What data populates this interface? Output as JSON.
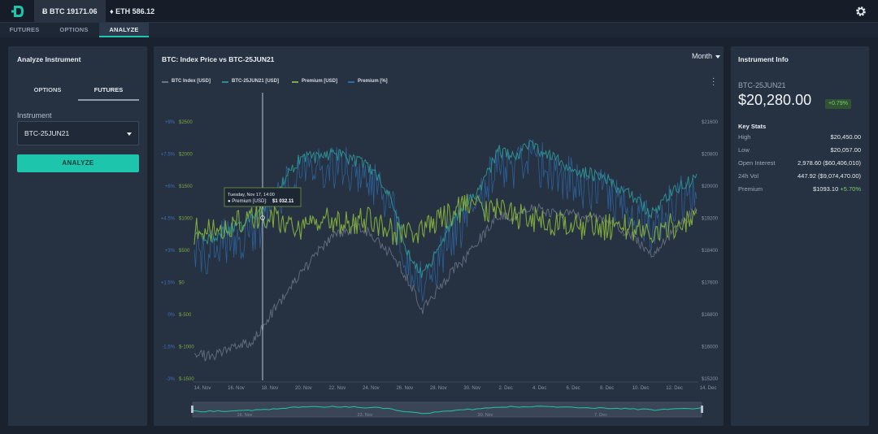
{
  "header": {
    "tickers": [
      {
        "symbol_icon": "bitcoin-icon",
        "label": "Ƀ BTC 19171.06"
      },
      {
        "symbol_icon": "ethereum-icon",
        "label": "♦ ETH 586.12"
      }
    ],
    "settings_icon": "gear-icon",
    "logo_icon": "deribit-logo-icon",
    "accent": "#1ec5ad"
  },
  "nav": {
    "tabs": [
      "FUTURES",
      "OPTIONS",
      "ANALYZE"
    ],
    "active": "ANALYZE"
  },
  "analyze_panel": {
    "title": "Analyze Instrument",
    "segments": [
      "OPTIONS",
      "FUTURES"
    ],
    "active_segment": "FUTURES",
    "instrument_label": "Instrument",
    "instrument_value": "BTC-25JUN21",
    "analyze_button": "ANALYZE"
  },
  "chart_panel": {
    "title": "BTC: Index Price vs BTC-25JUN21",
    "range_select": "Month",
    "menu_icon": "kebab-menu-icon",
    "tooltip": {
      "date": "Tuesday, Nov 17, 14:00",
      "series": "Premium [USD]:",
      "value": "$1 032.11"
    }
  },
  "chart_data": {
    "type": "line",
    "legend": [
      {
        "name": "BTC Index [USD]",
        "color": "#6b7686"
      },
      {
        "name": "BTC-25JUN21 [USD]",
        "color": "#2d8f8f"
      },
      {
        "name": "Premium [USD]",
        "color": "#7fa83e"
      },
      {
        "name": "Premium [%]",
        "color": "#2e6aa8"
      }
    ],
    "x_ticks": [
      "14. Nov",
      "16. Nov",
      "18. Nov",
      "20. Nov",
      "22. Nov",
      "24. Nov",
      "26. Nov",
      "28. Nov",
      "30. Nov",
      "2. Dec",
      "4. Dec",
      "6. Dec",
      "8. Dec",
      "10. Dec",
      "12. Dec",
      "14. Dec"
    ],
    "y_left_pct": [
      "+9%",
      "+7.5%",
      "+6%",
      "+4.5%",
      "+3%",
      "+1.5%",
      "0%",
      "-1.5%",
      "-3%"
    ],
    "y_left_usd": [
      "$2500",
      "$2000",
      "$1500",
      "$1000",
      "$500",
      "$0",
      "$-500",
      "$-1000",
      "$-1500"
    ],
    "y_right": [
      "$21600",
      "$20800",
      "$20000",
      "$19200",
      "$18400",
      "$17600",
      "$16800",
      "$16000",
      "$15200"
    ],
    "navigator_ticks": [
      "16. Nov",
      "23. Nov",
      "30. Nov",
      "7. Dec"
    ],
    "series_shape": [
      {
        "name": "BTC Index [USD]",
        "values": [
          15800,
          15750,
          15900,
          16000,
          16200,
          16800,
          17300,
          17800,
          18300,
          18700,
          18900,
          19000,
          18600,
          18300,
          17700,
          16900,
          17400,
          17900,
          18300,
          18800,
          19300,
          19200,
          19500,
          19400,
          19300,
          19300,
          19200,
          19200,
          18900,
          18700,
          18300,
          18700,
          19100,
          19400
        ]
      },
      {
        "name": "BTC-25JUN21 [USD]",
        "values": [
          18700,
          18700,
          18900,
          19000,
          19200,
          19700,
          20200,
          20700,
          20700,
          20800,
          20700,
          20600,
          20300,
          19700,
          18400,
          17800,
          18400,
          19100,
          19600,
          20100,
          20900,
          20700,
          21000,
          20800,
          20600,
          20400,
          20300,
          20200,
          19900,
          19700,
          19300,
          19700,
          20000,
          20200
        ]
      },
      {
        "name": "Premium [USD]",
        "values": [
          800,
          850,
          900,
          950,
          1050,
          1000,
          900,
          850,
          900,
          1000,
          900,
          1000,
          950,
          800,
          750,
          850,
          950,
          1050,
          1250,
          1150,
          1100,
          1050,
          1000,
          950,
          900,
          850,
          900,
          850,
          900,
          850,
          800,
          850,
          950,
          1100
        ]
      }
    ]
  },
  "info_panel": {
    "title": "Instrument Info",
    "symbol": "BTC-25JUN21",
    "price": "$20,280.00",
    "change": "+0.79%",
    "key_stats_title": "Key Stats",
    "stats": [
      {
        "label": "High",
        "value": "$20,450.00",
        "extra": ""
      },
      {
        "label": "Low",
        "value": "$20,057.00",
        "extra": ""
      },
      {
        "label": "Open Interest",
        "value": "2,978.60 ($60,406,010)",
        "extra": ""
      },
      {
        "label": "24h Vol",
        "value": "447.92 ($9,074,470.00)",
        "extra": ""
      },
      {
        "label": "Premium",
        "value": "$1093.10",
        "extra": "+5.70%"
      }
    ]
  }
}
